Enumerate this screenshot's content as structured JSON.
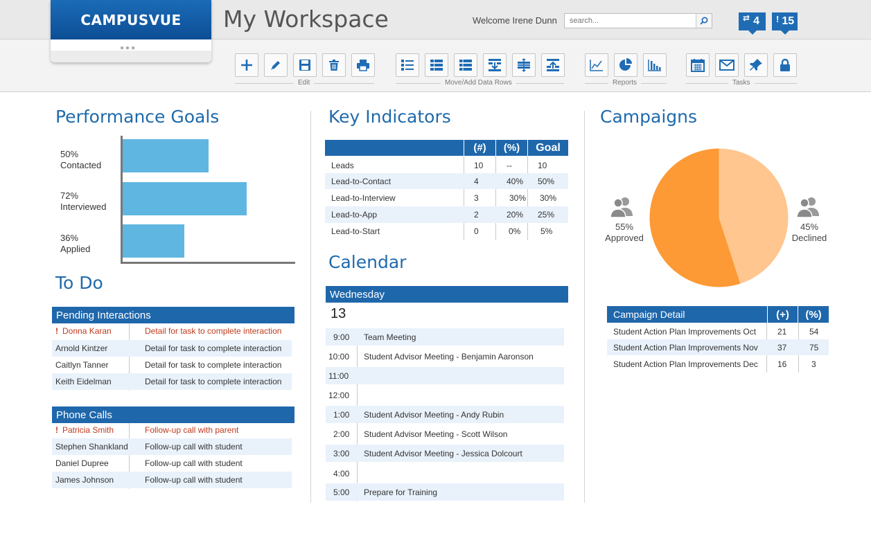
{
  "header": {
    "logo": "CAMPUSVUE",
    "title": "My Workspace",
    "welcome": "Welcome Irene Dunn",
    "search_placeholder": "search...",
    "badge_messages": "4",
    "badge_alerts": "15"
  },
  "toolbar": {
    "groups": [
      "Edit",
      "Move/Add Data Rows",
      "Reports",
      "Tasks"
    ],
    "icons": [
      "add-icon",
      "edit-icon",
      "save-icon",
      "delete-icon",
      "print-icon",
      "list-add-icon",
      "list-check-icon",
      "list-rows-icon",
      "list-import-icon",
      "list-move-icon",
      "list-export-icon",
      "line-chart-icon",
      "pie-chart-icon",
      "bar-chart-icon",
      "calendar-icon",
      "mail-icon",
      "pin-icon",
      "lock-icon"
    ]
  },
  "performance_goals": {
    "title": "Performance Goals",
    "items": [
      {
        "pct": "50%",
        "label": "Contacted",
        "value": 0.5
      },
      {
        "pct": "72%",
        "label": "Interviewed",
        "value": 0.72
      },
      {
        "pct": "36%",
        "label": "Applied",
        "value": 0.36
      }
    ]
  },
  "key_indicators": {
    "title": "Key Indicators",
    "columns": [
      "(#)",
      "(%)",
      "Goal"
    ],
    "rows": [
      {
        "name": "Leads",
        "num": "10",
        "pct": "--",
        "goal": "10"
      },
      {
        "name": "Lead-to-Contact",
        "num": "4",
        "pct": "40%",
        "goal": "50%"
      },
      {
        "name": "Lead-to-Interview",
        "num": "3",
        "pct": "30%",
        "goal": "30%"
      },
      {
        "name": "Lead-to-App",
        "num": "2",
        "pct": "20%",
        "goal": "25%"
      },
      {
        "name": "Lead-to-Start",
        "num": "0",
        "pct": "0%",
        "goal": "5%"
      }
    ]
  },
  "calendar": {
    "title": "Calendar",
    "day": "Wednesday",
    "date": "13",
    "slots": [
      {
        "time": "9:00",
        "event": "Team Meeting"
      },
      {
        "time": "10:00",
        "event": "Student Advisor Meeting - Benjamin Aaronson"
      },
      {
        "time": "11:00",
        "event": ""
      },
      {
        "time": "12:00",
        "event": ""
      },
      {
        "time": "1:00",
        "event": "Student Advisor Meeting - Andy Rubin"
      },
      {
        "time": "2:00",
        "event": "Student Advisor Meeting - Scott Wilson"
      },
      {
        "time": "3:00",
        "event": "Student Advisor Meeting - Jessica Dolcourt"
      },
      {
        "time": "4:00",
        "event": ""
      },
      {
        "time": "5:00",
        "event": "Prepare for Training"
      }
    ]
  },
  "todo": {
    "title": "To Do",
    "pending": {
      "header": "Pending Interactions",
      "rows": [
        {
          "name": "Donna Karan",
          "detail": "Detail for task to complete interaction",
          "urgent": true
        },
        {
          "name": "Arnold Kintzer",
          "detail": "Detail for task to complete interaction",
          "urgent": false
        },
        {
          "name": "Caitlyn Tanner",
          "detail": "Detail for task to complete interaction",
          "urgent": false
        },
        {
          "name": "Keith Eidelman",
          "detail": "Detail for task to complete interaction",
          "urgent": false
        }
      ]
    },
    "calls": {
      "header": "Phone Calls",
      "rows": [
        {
          "name": "Patricia Smith",
          "detail": "Follow-up call with parent",
          "urgent": true
        },
        {
          "name": "Stephen Shankland",
          "detail": "Follow-up call with student",
          "urgent": false
        },
        {
          "name": "Daniel Dupree",
          "detail": "Follow-up call with student",
          "urgent": false
        },
        {
          "name": "James Johnson",
          "detail": "Follow-up call with student",
          "urgent": false
        }
      ]
    }
  },
  "campaigns": {
    "title": "Campaigns",
    "approved_pct": "55%",
    "approved_label": "Approved",
    "declined_pct": "45%",
    "declined_label": "Declined",
    "colors": {
      "approved": "#fd9a35",
      "declined": "#ffc690"
    },
    "detail": {
      "columns": [
        "Campaign Detail",
        "(+)",
        "(%)"
      ],
      "rows": [
        {
          "name": "Student Action Plan Improvements Oct",
          "plus": "21",
          "pct": "54"
        },
        {
          "name": "Student Action Plan Improvements Nov",
          "plus": "37",
          "pct": "75"
        },
        {
          "name": "Student Action Plan Improvements Dec",
          "plus": "16",
          "pct": "3"
        }
      ]
    }
  },
  "chart_data": [
    {
      "type": "bar",
      "title": "Performance Goals",
      "categories": [
        "Contacted",
        "Interviewed",
        "Applied"
      ],
      "values": [
        50,
        72,
        36
      ],
      "xlabel": "",
      "ylabel": ""
    },
    {
      "type": "pie",
      "title": "Campaigns",
      "categories": [
        "Approved",
        "Declined"
      ],
      "values": [
        55,
        45
      ]
    }
  ]
}
